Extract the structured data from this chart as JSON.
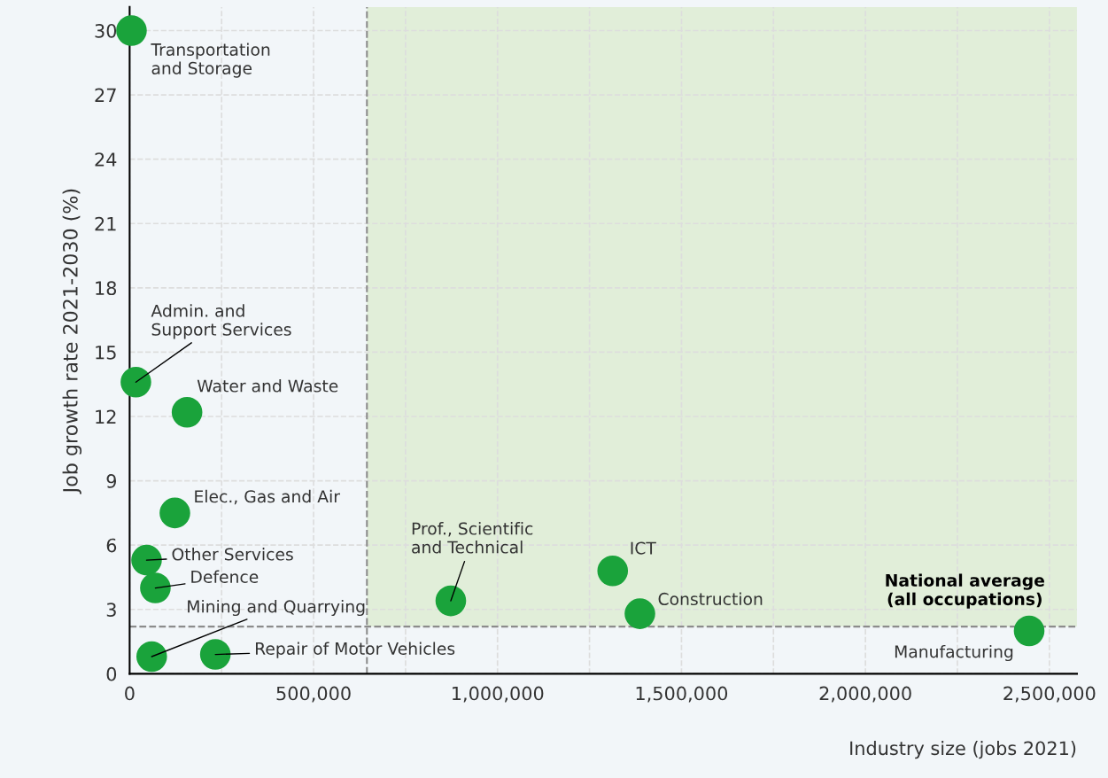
{
  "chart_data": {
    "type": "scatter",
    "xlabel": "Industry size (jobs 2021)",
    "ylabel": "Job growth rate 2021-2030 (%)",
    "x": [
      5000,
      17000,
      156000,
      123000,
      46000,
      70000,
      60000,
      233000,
      873000,
      1313000,
      1387000,
      2445000
    ],
    "series": [
      {
        "color": "#1aa33b",
        "values": [
          30,
          13.6,
          12.2,
          7.5,
          5.3,
          4.0,
          0.8,
          0.9,
          3.4,
          4.8,
          2.8,
          2.0
        ]
      }
    ],
    "xlim": [
      0,
      2575000
    ],
    "ylim": [
      0,
      31.1
    ],
    "xticks": [
      0,
      {
        "value": 250000,
        "label": null
      },
      {
        "value": 500000,
        "label": "500,000"
      },
      {
        "value": 750000,
        "label": null
      },
      {
        "value": 1000000,
        "label": "1,000,000"
      },
      {
        "value": 1250000,
        "label": null
      },
      {
        "value": 1500000,
        "label": "1,500,000"
      },
      {
        "value": 1750000,
        "label": null
      },
      {
        "value": 2000000,
        "label": "2,000,000"
      },
      {
        "value": 2250000,
        "label": null
      },
      {
        "value": 2500000,
        "label": "2,500,000"
      }
    ],
    "yticks": [
      0,
      3,
      6,
      9,
      12,
      15,
      18,
      21,
      24,
      27,
      30
    ],
    "grid": true,
    "marker": "circle",
    "ref_lines": [
      {
        "axis": "x",
        "value": 645000,
        "color": "#8c8c8c",
        "line_style": "dashed"
      },
      {
        "axis": "y",
        "value": 2.2,
        "color": "#8c8c8c",
        "line_style": "dashed"
      }
    ],
    "bands": [
      {
        "axis": "x",
        "from": 645000,
        "to": 2575000,
        "color": "#e1eed9"
      }
    ],
    "annotations": [
      {
        "text": "Transportation\nand Storage",
        "x": 5000,
        "y": 30
      },
      {
        "text": "Admin. and\nSupport Services",
        "x": 17000,
        "y": 13.6
      },
      {
        "text": "Water and Waste",
        "x": 156000,
        "y": 12.2
      },
      {
        "text": "Elec., Gas and Air",
        "x": 123000,
        "y": 7.5
      },
      {
        "text": "Other Services",
        "x": 46000,
        "y": 5.3
      },
      {
        "text": "Defence",
        "x": 70000,
        "y": 4.0
      },
      {
        "text": "Mining and Quarrying",
        "x": 60000,
        "y": 0.8
      },
      {
        "text": "Repair of Motor Vehicles",
        "x": 233000,
        "y": 0.9
      },
      {
        "text": "Prof., Scientific\nand Technical",
        "x": 873000,
        "y": 3.4
      },
      {
        "text": "ICT",
        "x": 1313000,
        "y": 4.8
      },
      {
        "text": "Construction",
        "x": 1387000,
        "y": 2.8
      },
      {
        "text": "Manufacturing",
        "x": 2445000,
        "y": 2.0
      },
      {
        "text": "National average\n(all occupations)",
        "x": 2270000,
        "y": 2.2
      }
    ]
  }
}
